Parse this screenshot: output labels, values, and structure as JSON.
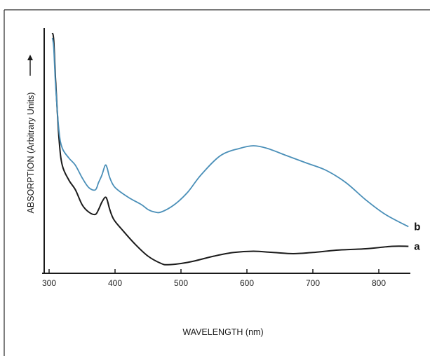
{
  "chart_data": {
    "type": "line",
    "xlabel": "WAVELENGTH (nm)",
    "ylabel": "ABSORPTION (Arbitrary Units)",
    "xlim": [
      300,
      850
    ],
    "xticks": [
      300,
      400,
      500,
      600,
      700,
      800
    ],
    "ylim": [
      0,
      100
    ],
    "grid": false,
    "series": [
      {
        "name": "a",
        "color": "#1b1b1b",
        "x": [
          305,
          307,
          310,
          315,
          320,
          330,
          340,
          350,
          360,
          370,
          375,
          380,
          385,
          388,
          392,
          398,
          410,
          430,
          450,
          470,
          480,
          500,
          520,
          550,
          580,
          610,
          640,
          670,
          700,
          740,
          780,
          820,
          845
        ],
        "y": [
          98,
          95,
          78,
          55,
          44,
          38,
          34,
          28,
          25,
          24,
          26,
          29,
          31,
          30,
          26,
          22,
          18,
          12,
          7,
          4,
          3.5,
          4,
          5,
          7,
          8.5,
          9,
          8.5,
          8,
          8.5,
          9.5,
          10,
          11,
          11
        ]
      },
      {
        "name": "b",
        "color": "#4a8fb8",
        "x": [
          305,
          307,
          310,
          315,
          320,
          330,
          340,
          350,
          360,
          370,
          375,
          380,
          385,
          388,
          392,
          400,
          420,
          440,
          450,
          460,
          470,
          490,
          510,
          530,
          560,
          590,
          610,
          630,
          660,
          690,
          720,
          750,
          780,
          810,
          845
        ],
        "y": [
          96,
          92,
          76,
          58,
          51,
          47,
          44,
          39,
          35,
          34,
          37,
          40,
          44,
          43,
          39,
          35,
          31,
          28,
          26,
          25,
          25,
          28,
          33,
          40,
          48,
          51,
          52,
          51,
          48,
          45,
          42,
          37,
          30,
          24,
          19
        ]
      }
    ]
  }
}
